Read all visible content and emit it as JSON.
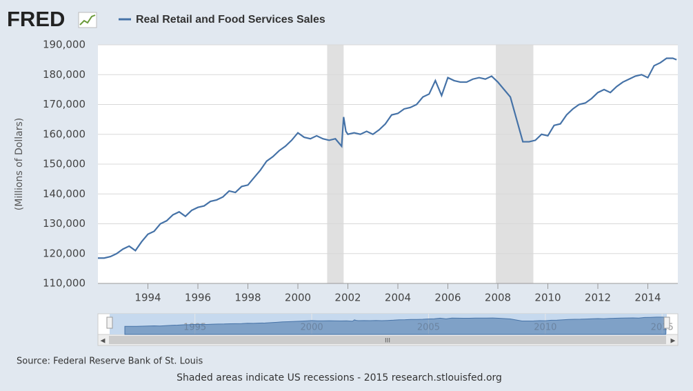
{
  "logo": "FRED",
  "chart_data": {
    "type": "line",
    "series": [
      {
        "name": "Real Retail and Food Services Sales",
        "color": "#4572a7",
        "x": [
          1992.0,
          1992.25,
          1992.5,
          1992.75,
          1993.0,
          1993.25,
          1993.5,
          1993.75,
          1994.0,
          1994.25,
          1994.5,
          1994.75,
          1995.0,
          1995.25,
          1995.5,
          1995.75,
          1996.0,
          1996.25,
          1996.5,
          1996.75,
          1997.0,
          1997.25,
          1997.5,
          1997.75,
          1998.0,
          1998.25,
          1998.5,
          1998.75,
          1999.0,
          1999.25,
          1999.5,
          1999.75,
          2000.0,
          2000.25,
          2000.5,
          2000.75,
          2001.0,
          2001.25,
          2001.5,
          2001.75,
          2001.83,
          2001.92,
          2002.0,
          2002.25,
          2002.5,
          2002.75,
          2003.0,
          2003.25,
          2003.5,
          2003.75,
          2004.0,
          2004.25,
          2004.5,
          2004.75,
          2005.0,
          2005.25,
          2005.5,
          2005.75,
          2006.0,
          2006.25,
          2006.5,
          2006.75,
          2007.0,
          2007.25,
          2007.5,
          2007.75,
          2008.0,
          2008.25,
          2008.5,
          2008.75,
          2009.0,
          2009.25,
          2009.5,
          2009.75,
          2010.0,
          2010.25,
          2010.5,
          2010.75,
          2011.0,
          2011.25,
          2011.5,
          2011.75,
          2012.0,
          2012.25,
          2012.5,
          2012.75,
          2013.0,
          2013.25,
          2013.5,
          2013.75,
          2014.0,
          2014.25,
          2014.5,
          2014.75,
          2015.0,
          2015.15
        ],
        "values": [
          118500,
          118500,
          119000,
          120000,
          121500,
          122500,
          121000,
          124000,
          126500,
          127500,
          130000,
          131000,
          133000,
          134000,
          132500,
          134500,
          135500,
          136000,
          137500,
          138000,
          139000,
          141000,
          140500,
          142500,
          143000,
          145500,
          148000,
          151000,
          152500,
          154500,
          156000,
          158000,
          160500,
          159000,
          158500,
          159500,
          158500,
          158000,
          158500,
          156000,
          165800,
          161000,
          160000,
          160500,
          160000,
          161000,
          160000,
          161500,
          163500,
          166500,
          167000,
          168500,
          169000,
          170000,
          172500,
          173500,
          178000,
          173000,
          179000,
          178000,
          177500,
          177500,
          178500,
          179000,
          178500,
          179500,
          177500,
          175000,
          172500,
          165000,
          157500,
          157500,
          158000,
          160000,
          159500,
          163000,
          163500,
          166500,
          168500,
          170000,
          170500,
          172000,
          174000,
          175000,
          174000,
          176000,
          177500,
          178500,
          179500,
          180000,
          179000,
          183000,
          184000,
          185500,
          185500,
          185000
        ]
      }
    ],
    "recessions": [
      [
        2001.17,
        2001.83
      ],
      [
        2007.92,
        2009.42
      ]
    ],
    "y_label": "(Millions of Dollars)",
    "xlim": [
      1992.0,
      2015.2
    ],
    "xticks": [
      1994,
      1996,
      1998,
      2000,
      2002,
      2004,
      2006,
      2008,
      2010,
      2012,
      2014
    ],
    "ylim": [
      110000,
      190000
    ],
    "yticks": [
      {
        "value": 110000,
        "label": "110,000"
      },
      {
        "value": 120000,
        "label": "120,000"
      },
      {
        "value": 130000,
        "label": "130,000"
      },
      {
        "value": 140000,
        "label": "140,000"
      },
      {
        "value": 150000,
        "label": "150,000"
      },
      {
        "value": 160000,
        "label": "160,000"
      },
      {
        "value": 170000,
        "label": "170,000"
      },
      {
        "value": 180000,
        "label": "180,000"
      },
      {
        "value": 190000,
        "label": "190,000"
      }
    ],
    "grid": true,
    "navigator": {
      "xlim": [
        1991.35,
        2015.2
      ],
      "ylim": [
        60000,
        200000
      ],
      "xticks": [
        1995,
        2000,
        2005,
        2010,
        2015
      ]
    },
    "source": "Source: Federal Reserve Bank of St. Louis",
    "footer": "Shaded areas indicate US recessions - 2015 research.stlouisfed.org"
  }
}
